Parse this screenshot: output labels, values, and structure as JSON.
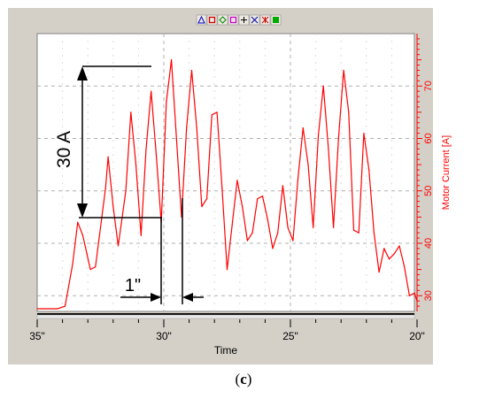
{
  "colors": {
    "series": "#ff0000",
    "panel": "#d4d0c8",
    "plot_bg": "#ffffff",
    "grid": "#b0b0b0",
    "annotation": "#000000"
  },
  "toolbar": {
    "buttons": [
      {
        "icon": "axis-triangle-icon",
        "color": "#0000cc"
      },
      {
        "icon": "red-square-icon",
        "color": "#cc0000"
      },
      {
        "icon": "diamond-icon",
        "color": "#008800"
      },
      {
        "icon": "magenta-square-icon",
        "color": "#cc00cc"
      },
      {
        "icon": "crosshair-icon",
        "color": "#000000"
      },
      {
        "icon": "cross-icon",
        "color": "#0000aa"
      },
      {
        "icon": "star-icon",
        "color": "#cc0000"
      },
      {
        "icon": "green-square-icon",
        "color": "#00aa00"
      }
    ]
  },
  "annotations": {
    "vertical_label": "30 A",
    "horizontal_label": "1\""
  },
  "caption": {
    "open": "(",
    "letter": "c",
    "close": ")"
  },
  "chart_data": {
    "type": "line",
    "title": "",
    "xlabel": "Time",
    "ylabel": "Motor Current [A]",
    "xlim": [
      35,
      20
    ],
    "ylim": [
      27,
      80
    ],
    "x_ticks": [
      "35\"",
      "30\"",
      "25\"",
      "20\""
    ],
    "x_tick_values": [
      35,
      30,
      25,
      20
    ],
    "y_ticks": [
      "30",
      "40",
      "50",
      "60",
      "70"
    ],
    "y_tick_values": [
      30,
      40,
      50,
      60,
      70
    ],
    "grid": true,
    "series": [
      {
        "x": [
          35.0,
          34.6,
          34.2,
          33.9,
          33.6,
          33.4,
          33.2,
          32.9,
          32.7,
          32.5,
          32.3,
          32.2,
          32.0,
          31.8,
          31.5,
          31.3,
          31.1,
          30.9,
          30.7,
          30.5,
          30.3,
          30.1,
          29.9,
          29.7,
          29.5,
          29.3,
          29.1,
          28.9,
          28.7,
          28.5,
          28.3,
          28.1,
          27.9,
          27.7,
          27.5,
          27.3,
          27.1,
          26.9,
          26.7,
          26.5,
          26.3,
          26.1,
          25.9,
          25.7,
          25.5,
          25.3,
          25.1,
          24.9,
          24.7,
          24.5,
          24.3,
          24.1,
          23.9,
          23.7,
          23.5,
          23.3,
          23.1,
          22.9,
          22.7,
          22.5,
          22.3,
          22.1,
          21.9,
          21.7,
          21.5,
          21.3,
          21.1,
          20.9,
          20.7,
          20.5,
          20.3,
          20.1,
          20.0
        ],
        "y": [
          27.5,
          27.5,
          27.5,
          28.0,
          36.0,
          44.0,
          41.5,
          35.0,
          35.5,
          43.0,
          50.5,
          56.5,
          47.0,
          39.5,
          50.0,
          65.0,
          55.0,
          41.5,
          58.0,
          69.0,
          57.0,
          44.0,
          67.0,
          75.0,
          60.0,
          45.0,
          62.0,
          73.0,
          62.0,
          47.0,
          48.5,
          64.5,
          65.0,
          50.5,
          35.0,
          43.5,
          52.0,
          47.0,
          40.5,
          42.0,
          48.5,
          49.0,
          44.5,
          39.0,
          42.0,
          51.0,
          43.0,
          40.5,
          52.5,
          62.0,
          55.0,
          43.0,
          60.5,
          70.0,
          58.0,
          43.0,
          60.0,
          73.0,
          65.0,
          42.5,
          42.0,
          61.0,
          54.0,
          42.0,
          34.5,
          39.0,
          37.0,
          38.0,
          39.5,
          35.5,
          30.0,
          30.5,
          29.0
        ]
      }
    ]
  }
}
